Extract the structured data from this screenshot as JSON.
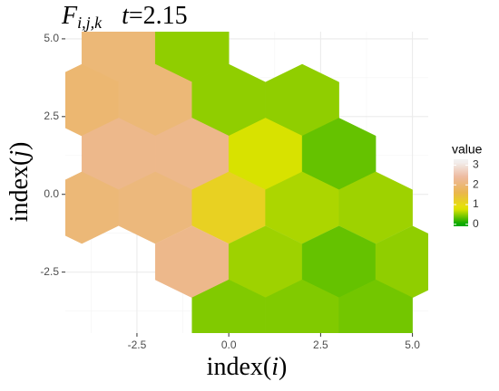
{
  "chart_data": {
    "type": "hexbin",
    "title_parts": [
      "F",
      "i,j,k",
      "t",
      "=2.15"
    ],
    "x_label_parts": [
      "index(",
      "i",
      ")"
    ],
    "y_label_parts": [
      "index(",
      "j",
      ")"
    ],
    "legend_title": "value",
    "x": [
      -3,
      -1,
      -4,
      -2,
      0,
      2,
      -3,
      -1,
      1,
      3,
      -4,
      -2,
      0,
      2,
      4,
      -1,
      1,
      3,
      5,
      0,
      2,
      4
    ],
    "y": [
      4.76,
      4.76,
      3.03,
      3.03,
      3.03,
      3.03,
      1.3,
      1.3,
      1.3,
      1.3,
      -0.43,
      -0.43,
      -0.43,
      -0.43,
      -0.43,
      -2.17,
      -2.17,
      -2.17,
      -2.17,
      -3.9,
      -3.9,
      -3.9
    ],
    "values": [
      2.0,
      0.5,
      1.95,
      2.0,
      0.5,
      0.5,
      2.2,
      2.2,
      0.75,
      0.35,
      2.0,
      2.05,
      1.15,
      0.6,
      0.55,
      2.2,
      0.55,
      0.35,
      0.5,
      0.45,
      0.45,
      0.4
    ],
    "color_stops": [
      {
        "value": 0,
        "color": "#00A600"
      },
      {
        "value": 0.8,
        "color": "#E6E600"
      },
      {
        "value": 1.6,
        "color": "#EAB64E"
      },
      {
        "value": 2.4,
        "color": "#EEB99F"
      },
      {
        "value": 3.2,
        "color": "#F2F2F2"
      }
    ],
    "legend_ticks": [
      0,
      1,
      2,
      3
    ],
    "legend_lim": [
      -0.1,
      3.3
    ],
    "xlim": [
      -4.45,
      5.43
    ],
    "ylim": [
      -4.46,
      5.23
    ],
    "xticks": [
      -2.5,
      {
        "value": 0,
        "label": "0.0"
      },
      2.5,
      {
        "value": 5,
        "label": "5.0"
      }
    ],
    "yticks": [
      -2.5,
      {
        "value": 0,
        "label": "0.0"
      },
      2.5,
      {
        "value": 5,
        "label": "5.0"
      }
    ],
    "grid": true
  }
}
